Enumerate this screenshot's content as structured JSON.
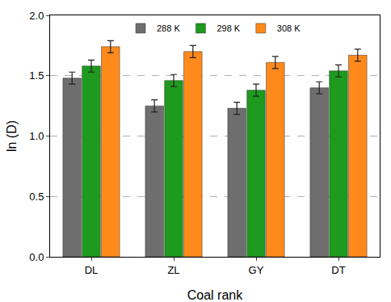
{
  "chart_data": {
    "type": "bar",
    "x_label": "Coal rank",
    "y_label": "ln (D)",
    "categories": [
      "DL",
      "ZL",
      "GY",
      "DT"
    ],
    "series": [
      {
        "name": "288 K",
        "color": "#6e6e6e",
        "values": [
          1.48,
          1.25,
          1.23,
          1.4
        ],
        "errors": [
          0.05,
          0.05,
          0.05,
          0.05
        ]
      },
      {
        "name": "298 K",
        "color": "#1e9a1e",
        "values": [
          1.58,
          1.46,
          1.38,
          1.54
        ],
        "errors": [
          0.05,
          0.05,
          0.05,
          0.05
        ]
      },
      {
        "name": "308 K",
        "color": "#ff8a1c",
        "values": [
          1.74,
          1.7,
          1.61,
          1.67
        ],
        "errors": [
          0.05,
          0.05,
          0.05,
          0.05
        ]
      }
    ],
    "ylim": [
      0,
      2
    ],
    "yticks": [
      {
        "value": 0,
        "label": "0.0"
      },
      0.5,
      {
        "value": 1,
        "label": "1.0"
      },
      1.5,
      {
        "value": 2,
        "label": "2.0"
      }
    ],
    "grid": true,
    "legend": "top"
  }
}
